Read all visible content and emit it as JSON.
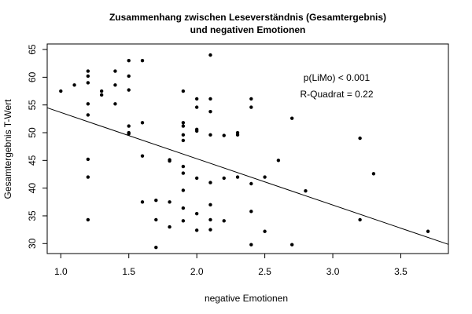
{
  "chart_data": {
    "type": "scatter",
    "title_line1": "Zusammenhang zwischen Leseverständnis (Gesamtergebnis)",
    "title_line2": "und negativen Emotionen",
    "xlabel": "negative Emotionen",
    "ylabel": "Gesamtergebnis T-Wert",
    "xlim": [
      0.9,
      3.85
    ],
    "ylim": [
      28.2,
      66
    ],
    "x_ticks": [
      1.0,
      1.5,
      2.0,
      2.5,
      3.0,
      3.5
    ],
    "x_tick_labels": [
      "1.0",
      "1.5",
      "2.0",
      "2.5",
      "3.0",
      "3.5"
    ],
    "y_ticks": [
      30,
      35,
      40,
      45,
      50,
      55,
      60,
      65
    ],
    "y_tick_labels": [
      "30",
      "35",
      "40",
      "45",
      "50",
      "55",
      "60",
      "65"
    ],
    "grid": false,
    "annotations": [
      "p(LiMo) < 0.001",
      "R-Quadrat = 0.22"
    ],
    "regression_line": {
      "intercept": 62.0,
      "slope": -8.35
    },
    "points": [
      {
        "x": 1.0,
        "y": 57.5
      },
      {
        "x": 1.1,
        "y": 58.6
      },
      {
        "x": 1.2,
        "y": 61.1
      },
      {
        "x": 1.2,
        "y": 60.2
      },
      {
        "x": 1.2,
        "y": 59.0
      },
      {
        "x": 1.2,
        "y": 55.2
      },
      {
        "x": 1.2,
        "y": 53.2
      },
      {
        "x": 1.2,
        "y": 45.2
      },
      {
        "x": 1.2,
        "y": 42.0
      },
      {
        "x": 1.2,
        "y": 34.3
      },
      {
        "x": 1.3,
        "y": 57.5
      },
      {
        "x": 1.3,
        "y": 56.8
      },
      {
        "x": 1.4,
        "y": 61.1
      },
      {
        "x": 1.4,
        "y": 58.6
      },
      {
        "x": 1.4,
        "y": 55.2
      },
      {
        "x": 1.5,
        "y": 63.0
      },
      {
        "x": 1.5,
        "y": 60.2
      },
      {
        "x": 1.5,
        "y": 57.7
      },
      {
        "x": 1.5,
        "y": 51.2
      },
      {
        "x": 1.5,
        "y": 50.0
      },
      {
        "x": 1.5,
        "y": 49.8
      },
      {
        "x": 1.6,
        "y": 63.0
      },
      {
        "x": 1.6,
        "y": 51.8
      },
      {
        "x": 1.6,
        "y": 45.8
      },
      {
        "x": 1.6,
        "y": 37.5
      },
      {
        "x": 1.7,
        "y": 37.8
      },
      {
        "x": 1.7,
        "y": 34.3
      },
      {
        "x": 1.7,
        "y": 29.3
      },
      {
        "x": 1.8,
        "y": 45.1
      },
      {
        "x": 1.8,
        "y": 44.9
      },
      {
        "x": 1.8,
        "y": 37.5
      },
      {
        "x": 1.8,
        "y": 33.0
      },
      {
        "x": 1.9,
        "y": 57.5
      },
      {
        "x": 1.9,
        "y": 51.8
      },
      {
        "x": 1.9,
        "y": 51.2
      },
      {
        "x": 1.9,
        "y": 49.6
      },
      {
        "x": 1.9,
        "y": 48.6
      },
      {
        "x": 1.9,
        "y": 43.9
      },
      {
        "x": 1.9,
        "y": 42.7
      },
      {
        "x": 1.9,
        "y": 39.6
      },
      {
        "x": 1.9,
        "y": 36.4
      },
      {
        "x": 1.9,
        "y": 34.1
      },
      {
        "x": 2.0,
        "y": 56.1
      },
      {
        "x": 2.0,
        "y": 54.6
      },
      {
        "x": 2.0,
        "y": 50.6
      },
      {
        "x": 2.0,
        "y": 50.3
      },
      {
        "x": 2.0,
        "y": 41.8
      },
      {
        "x": 2.0,
        "y": 35.4
      },
      {
        "x": 2.0,
        "y": 32.4
      },
      {
        "x": 2.1,
        "y": 64.0
      },
      {
        "x": 2.1,
        "y": 56.1
      },
      {
        "x": 2.1,
        "y": 53.8
      },
      {
        "x": 2.1,
        "y": 49.6
      },
      {
        "x": 2.1,
        "y": 41.0
      },
      {
        "x": 2.1,
        "y": 37.0
      },
      {
        "x": 2.1,
        "y": 34.3
      },
      {
        "x": 2.1,
        "y": 32.5
      },
      {
        "x": 2.2,
        "y": 49.5
      },
      {
        "x": 2.2,
        "y": 41.8
      },
      {
        "x": 2.2,
        "y": 34.1
      },
      {
        "x": 2.3,
        "y": 50.0
      },
      {
        "x": 2.3,
        "y": 49.6
      },
      {
        "x": 2.3,
        "y": 42.0
      },
      {
        "x": 2.4,
        "y": 56.1
      },
      {
        "x": 2.4,
        "y": 54.6
      },
      {
        "x": 2.4,
        "y": 40.8
      },
      {
        "x": 2.4,
        "y": 35.8
      },
      {
        "x": 2.4,
        "y": 29.8
      },
      {
        "x": 2.5,
        "y": 42.0
      },
      {
        "x": 2.5,
        "y": 32.2
      },
      {
        "x": 2.6,
        "y": 45.0
      },
      {
        "x": 2.7,
        "y": 52.6
      },
      {
        "x": 2.7,
        "y": 29.8
      },
      {
        "x": 2.8,
        "y": 39.5
      },
      {
        "x": 3.2,
        "y": 49.0
      },
      {
        "x": 3.2,
        "y": 34.3
      },
      {
        "x": 3.3,
        "y": 42.6
      },
      {
        "x": 3.7,
        "y": 32.2
      }
    ]
  }
}
